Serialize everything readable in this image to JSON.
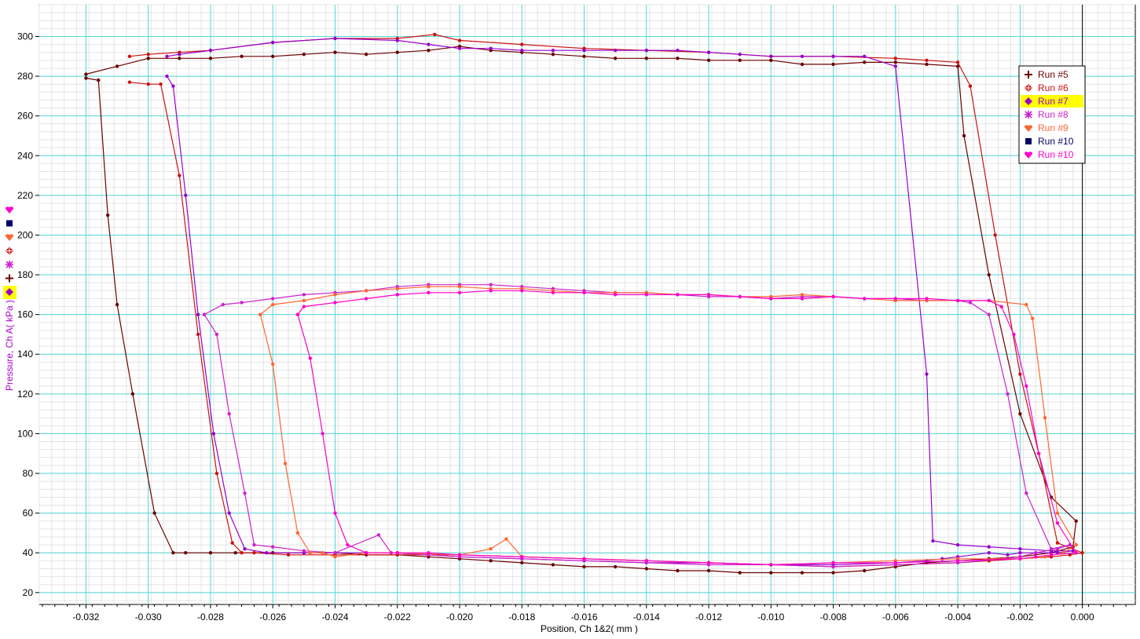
{
  "chart_data": {
    "type": "line",
    "xlabel": "Position, Ch 1&2( mm )",
    "ylabel": "Pressure, Ch A( kPa )",
    "xlim": [
      -0.0335,
      0.0017
    ],
    "ylim": [
      14,
      316
    ],
    "x_ticks": [
      "-0.032",
      "-0.030",
      "-0.028",
      "-0.026",
      "-0.024",
      "-0.022",
      "-0.020",
      "-0.018",
      "-0.016",
      "-0.014",
      "-0.012",
      "-0.010",
      "-0.008",
      "-0.006",
      "-0.004",
      "-0.002",
      "0.000"
    ],
    "y_ticks": [
      "20",
      "40",
      "60",
      "80",
      "100",
      "120",
      "140",
      "160",
      "180",
      "200",
      "220",
      "240",
      "260",
      "280",
      "300"
    ],
    "grid": true,
    "legend_position": "top-right",
    "legend_highlight": "Run #7",
    "series": [
      {
        "name": "Run #5",
        "color": "#6b0000",
        "marker": "cross",
        "x": [
          -0.032,
          -0.0316,
          -0.0313,
          -0.031,
          -0.0305,
          -0.0298,
          -0.0292,
          -0.0288,
          -0.028,
          -0.0272,
          -0.026,
          -0.025,
          -0.024,
          -0.023,
          -0.022,
          -0.021,
          -0.02,
          -0.019,
          -0.018,
          -0.017,
          -0.016,
          -0.015,
          -0.014,
          -0.013,
          -0.012,
          -0.011,
          -0.01,
          -0.009,
          -0.008,
          -0.007,
          -0.006,
          -0.005,
          -0.004,
          -0.003,
          -0.002,
          -0.001,
          -0.0003,
          -0.0002,
          -0.001,
          -0.002,
          -0.003,
          -0.0038,
          -0.004,
          -0.005,
          -0.006,
          -0.007,
          -0.008,
          -0.009,
          -0.01,
          -0.011,
          -0.012,
          -0.013,
          -0.014,
          -0.015,
          -0.016,
          -0.017,
          -0.018,
          -0.019,
          -0.02,
          -0.021,
          -0.022,
          -0.023,
          -0.024,
          -0.025,
          -0.026,
          -0.027,
          -0.028,
          -0.029,
          -0.03,
          -0.031,
          -0.032
        ],
        "y": [
          279,
          278,
          210,
          165,
          120,
          60,
          40,
          40,
          40,
          40,
          40,
          40,
          40,
          39,
          39,
          38,
          37,
          36,
          35,
          34,
          33,
          33,
          32,
          31,
          31,
          30,
          30,
          30,
          30,
          31,
          33,
          35,
          36,
          37,
          38,
          40,
          43,
          56,
          68,
          110,
          180,
          250,
          285,
          286,
          287,
          287,
          286,
          286,
          288,
          288,
          288,
          289,
          289,
          289,
          290,
          291,
          292,
          293,
          295,
          293,
          292,
          291,
          292,
          291,
          290,
          290,
          289,
          289,
          289,
          285,
          281
        ]
      },
      {
        "name": "Run #6",
        "color": "#cc1111",
        "marker": "diamond-cross",
        "x": [
          -0.0306,
          -0.03,
          -0.0296,
          -0.029,
          -0.0284,
          -0.0278,
          -0.0273,
          -0.027,
          -0.0266,
          -0.0255,
          -0.024,
          -0.022,
          -0.02,
          -0.018,
          -0.016,
          -0.014,
          -0.012,
          -0.01,
          -0.008,
          -0.006,
          -0.004,
          -0.003,
          -0.002,
          -0.001,
          -0.0004,
          0.0,
          -0.0008,
          -0.0014,
          -0.002,
          -0.0028,
          -0.0036,
          -0.004,
          -0.005,
          -0.006,
          -0.008,
          -0.01,
          -0.012,
          -0.014,
          -0.016,
          -0.018,
          -0.02,
          -0.0208,
          -0.022,
          -0.024,
          -0.026,
          -0.028,
          -0.029,
          -0.03,
          -0.0306
        ],
        "y": [
          277,
          276,
          276,
          230,
          150,
          80,
          45,
          40,
          40,
          39,
          39,
          39,
          39,
          38,
          37,
          36,
          35,
          34,
          33,
          34,
          35,
          36,
          37,
          38,
          39,
          40,
          45,
          90,
          130,
          200,
          275,
          287,
          288,
          289,
          290,
          290,
          292,
          293,
          294,
          296,
          298,
          301,
          299,
          299,
          297,
          293,
          292,
          291,
          290
        ]
      },
      {
        "name": "Run #7",
        "color": "#9900cc",
        "marker": "diamond",
        "x": [
          -0.0294,
          -0.0292,
          -0.0288,
          -0.0284,
          -0.0279,
          -0.0274,
          -0.0269,
          -0.0262,
          -0.025,
          -0.024,
          -0.023,
          -0.022,
          -0.021,
          -0.02,
          -0.018,
          -0.016,
          -0.014,
          -0.012,
          -0.01,
          -0.008,
          -0.006,
          -0.005,
          -0.0045,
          -0.004,
          -0.003,
          -0.0024,
          -0.002,
          -0.0015,
          -0.0008,
          -0.0003,
          -0.001,
          -0.002,
          -0.003,
          -0.004,
          -0.0048,
          -0.005,
          -0.006,
          -0.007,
          -0.008,
          -0.009,
          -0.01,
          -0.011,
          -0.012,
          -0.013,
          -0.014,
          -0.015,
          -0.016,
          -0.017,
          -0.018,
          -0.019,
          -0.02,
          -0.021,
          -0.022,
          -0.024,
          -0.026,
          -0.028,
          -0.029,
          -0.0294
        ],
        "y": [
          280,
          275,
          220,
          160,
          100,
          60,
          42,
          40,
          40,
          40,
          40,
          40,
          39,
          38,
          37,
          36,
          35,
          35,
          34,
          34,
          35,
          36,
          37,
          38,
          40,
          39,
          40,
          40,
          40,
          41,
          41,
          42,
          43,
          44,
          46,
          130,
          285,
          290,
          290,
          290,
          290,
          291,
          292,
          293,
          293,
          293,
          293,
          293,
          293,
          294,
          294,
          296,
          298,
          299,
          297,
          293,
          291,
          290
        ]
      },
      {
        "name": "Run #8",
        "color": "#cc22cc",
        "marker": "asterisk",
        "x": [
          -0.0282,
          -0.0278,
          -0.0274,
          -0.0269,
          -0.0266,
          -0.026,
          -0.025,
          -0.024,
          -0.0226,
          -0.0222,
          -0.021,
          -0.02,
          -0.018,
          -0.016,
          -0.014,
          -0.012,
          -0.01,
          -0.008,
          -0.006,
          -0.004,
          -0.0025,
          -0.002,
          -0.0015,
          -0.0008,
          -0.0004,
          -0.001,
          -0.0018,
          -0.0024,
          -0.003,
          -0.0036,
          -0.004,
          -0.005,
          -0.006,
          -0.007,
          -0.008,
          -0.009,
          -0.01,
          -0.011,
          -0.012,
          -0.013,
          -0.014,
          -0.015,
          -0.016,
          -0.017,
          -0.018,
          -0.019,
          -0.02,
          -0.021,
          -0.022,
          -0.023,
          -0.024,
          -0.025,
          -0.026,
          -0.027,
          -0.0276,
          -0.0282
        ],
        "y": [
          160,
          150,
          110,
          70,
          44,
          43,
          41,
          40,
          49,
          40,
          39,
          38,
          37,
          36,
          35,
          34,
          34,
          33,
          34,
          35,
          37,
          38,
          40,
          42,
          44,
          42,
          70,
          120,
          160,
          166,
          167,
          167,
          168,
          168,
          169,
          169,
          168,
          169,
          169,
          170,
          171,
          171,
          172,
          173,
          174,
          175,
          175,
          175,
          174,
          172,
          171,
          170,
          168,
          166,
          165,
          160
        ]
      },
      {
        "name": "Run #9",
        "color": "#ff6633",
        "marker": "heart",
        "x": [
          -0.0264,
          -0.026,
          -0.0256,
          -0.0252,
          -0.0248,
          -0.0244,
          -0.024,
          -0.023,
          -0.022,
          -0.02,
          -0.019,
          -0.0185,
          -0.018,
          -0.016,
          -0.014,
          -0.012,
          -0.01,
          -0.008,
          -0.006,
          -0.004,
          -0.002,
          -0.0012,
          -0.0006,
          -0.0002,
          -0.0008,
          -0.0012,
          -0.0016,
          -0.0018,
          -0.003,
          -0.004,
          -0.005,
          -0.006,
          -0.007,
          -0.008,
          -0.009,
          -0.01,
          -0.011,
          -0.012,
          -0.013,
          -0.014,
          -0.015,
          -0.016,
          -0.017,
          -0.018,
          -0.019,
          -0.02,
          -0.021,
          -0.022,
          -0.023,
          -0.024,
          -0.025,
          -0.026,
          -0.0264
        ],
        "y": [
          160,
          135,
          85,
          50,
          40,
          40,
          38,
          40,
          40,
          39,
          42,
          47,
          38,
          37,
          36,
          35,
          34,
          35,
          36,
          37,
          37,
          38,
          40,
          44,
          60,
          108,
          158,
          165,
          167,
          167,
          167,
          167,
          168,
          169,
          170,
          169,
          169,
          170,
          170,
          171,
          171,
          171,
          172,
          173,
          173,
          174,
          174,
          173,
          172,
          170,
          167,
          165,
          160
        ]
      },
      {
        "name": "Run #10",
        "color": "#000066",
        "marker": "square",
        "x": [],
        "y": []
      },
      {
        "name": "Run #10",
        "color": "#ff00cc",
        "marker": "heart",
        "x": [
          -0.0252,
          -0.0248,
          -0.0244,
          -0.024,
          -0.0236,
          -0.023,
          -0.022,
          -0.021,
          -0.02,
          -0.018,
          -0.016,
          -0.014,
          -0.012,
          -0.01,
          -0.008,
          -0.006,
          -0.004,
          -0.002,
          -0.0015,
          -0.001,
          -0.0002,
          -0.0008,
          -0.0014,
          -0.0018,
          -0.0022,
          -0.0026,
          -0.003,
          -0.004,
          -0.005,
          -0.006,
          -0.007,
          -0.008,
          -0.009,
          -0.01,
          -0.011,
          -0.012,
          -0.013,
          -0.014,
          -0.015,
          -0.016,
          -0.017,
          -0.018,
          -0.019,
          -0.02,
          -0.021,
          -0.022,
          -0.023,
          -0.024,
          -0.025,
          -0.0252
        ],
        "y": [
          160,
          138,
          100,
          60,
          44,
          40,
          40,
          40,
          39,
          38,
          37,
          36,
          35,
          34,
          35,
          35,
          36,
          37,
          38,
          39,
          40,
          55,
          90,
          124,
          150,
          164,
          167,
          167,
          168,
          168,
          168,
          169,
          168,
          168,
          169,
          170,
          170,
          170,
          170,
          171,
          171,
          172,
          172,
          171,
          171,
          170,
          168,
          166,
          164,
          160
        ]
      }
    ]
  }
}
